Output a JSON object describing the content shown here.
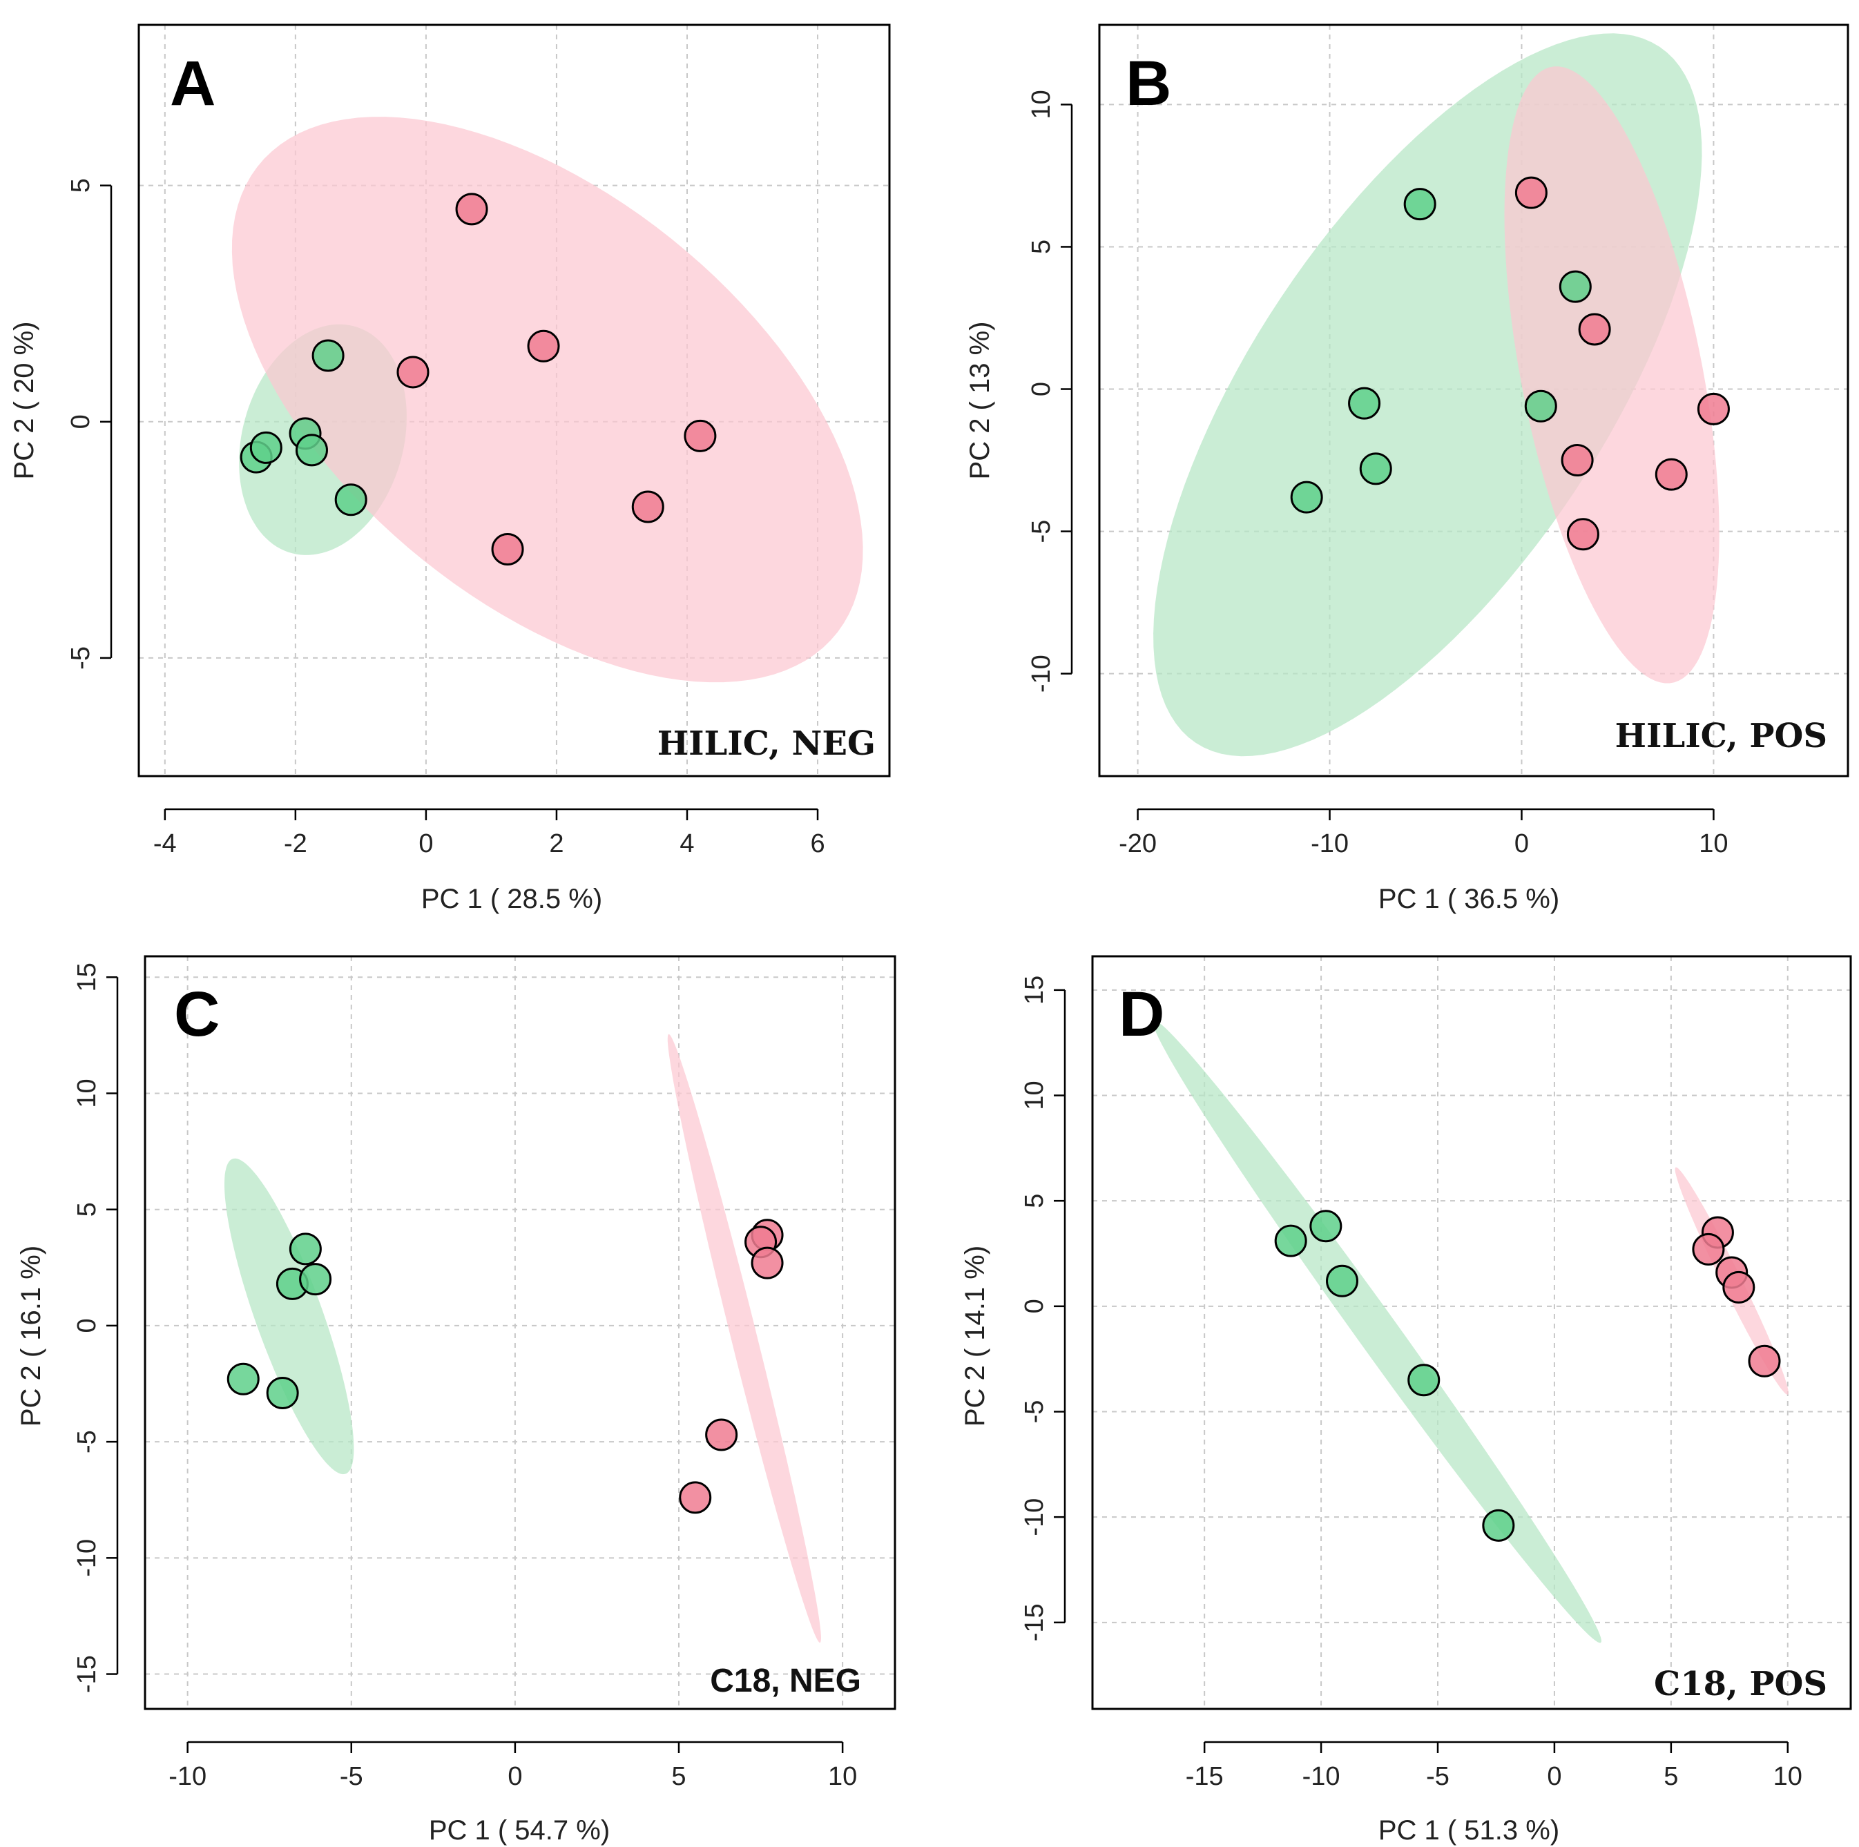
{
  "chart_data": [
    {
      "type": "scatter",
      "panel": "A",
      "label": "HILIC, NEG",
      "xlabel": "PC 1 ( 28.5 %)",
      "ylabel": "PC 2 ( 20 %)",
      "xlim": [
        -4.4,
        7.1
      ],
      "ylim": [
        -7.5,
        8.4
      ],
      "xticks": [
        -4,
        -2,
        0,
        2,
        4,
        6
      ],
      "yticks": [
        -5,
        0,
        5
      ],
      "grid": true,
      "series": [
        {
          "color": "#5fd08b",
          "points": [
            [
              -2.6,
              -0.75
            ],
            [
              -2.45,
              -0.55
            ],
            [
              -1.85,
              -0.25
            ],
            [
              -1.75,
              -0.6
            ],
            [
              -1.5,
              1.4
            ],
            [
              -1.15,
              -1.65
            ]
          ],
          "ellipse": {
            "cx": -1.58,
            "cy": -0.38,
            "rx": 1.25,
            "ry": 2.46,
            "angle_deg": -8,
            "color": "#b6e6c5"
          }
        },
        {
          "color": "#f07c92",
          "points": [
            [
              0.7,
              4.5
            ],
            [
              1.8,
              1.6
            ],
            [
              -0.2,
              1.05
            ],
            [
              4.2,
              -0.3
            ],
            [
              3.4,
              -1.8
            ],
            [
              1.25,
              -2.7
            ]
          ],
          "ellipse": {
            "cx": 1.86,
            "cy": 0.47,
            "rx": 3.6,
            "ry": 6.8,
            "angle_deg": 34,
            "color": "#fcc7d1"
          }
        }
      ]
    },
    {
      "type": "scatter",
      "panel": "B",
      "label": "HILIC, POS",
      "xlabel": "PC 1 ( 36.5 %)",
      "ylabel": "PC 2 ( 13 %)",
      "xlim": [
        -22,
        17
      ],
      "ylim": [
        -13.6,
        12.8
      ],
      "xticks": [
        -20,
        -10,
        0,
        10
      ],
      "yticks": [
        -10,
        -5,
        0,
        5,
        10
      ],
      "grid": true,
      "series": [
        {
          "color": "#5fd08b",
          "points": [
            [
              -5.3,
              6.5
            ],
            [
              -8.2,
              -0.5
            ],
            [
              -7.6,
              -2.8
            ],
            [
              -11.2,
              -3.8
            ],
            [
              2.8,
              3.6
            ],
            [
              1.0,
              -0.6
            ]
          ],
          "ellipse": {
            "cx": -4.9,
            "cy": -0.2,
            "rx": 17.5,
            "ry": 7.7,
            "angle_deg": 40,
            "color": "#b6e6c5"
          }
        },
        {
          "color": "#f07c92",
          "points": [
            [
              0.5,
              6.9
            ],
            [
              3.8,
              2.1
            ],
            [
              10.0,
              -0.7
            ],
            [
              2.9,
              -2.5
            ],
            [
              7.8,
              -3.0
            ],
            [
              3.2,
              -5.1
            ]
          ],
          "ellipse": {
            "cx": 4.7,
            "cy": 0.5,
            "rx": 4.6,
            "ry": 11.3,
            "angle_deg": 18,
            "color": "#fcc7d1"
          }
        }
      ]
    },
    {
      "type": "scatter",
      "panel": "C",
      "label": "C18, NEG",
      "xlabel": "PC 1 ( 54.7 %)",
      "ylabel": "PC 2 ( 16.1 %)",
      "xlim": [
        -11.3,
        11.6
      ],
      "ylim": [
        -16.5,
        15.9
      ],
      "xticks": [
        -10,
        -5,
        0,
        5,
        10
      ],
      "yticks": [
        -15,
        -10,
        -5,
        0,
        5,
        10,
        15
      ],
      "grid": true,
      "series": [
        {
          "color": "#5fd08b",
          "points": [
            [
              -6.4,
              3.3
            ],
            [
              -6.8,
              1.8
            ],
            [
              -6.1,
              2.0
            ],
            [
              -8.3,
              -2.3
            ],
            [
              -7.1,
              -2.9
            ]
          ],
          "ellipse": {
            "cx": -6.9,
            "cy": 0.4,
            "rx": 1.05,
            "ry": 7.0,
            "angle_deg": 14,
            "color": "#b6e6c5"
          }
        },
        {
          "color": "#f07c92",
          "points": [
            [
              7.7,
              3.9
            ],
            [
              7.5,
              3.6
            ],
            [
              7.7,
              2.7
            ],
            [
              6.3,
              -4.7
            ],
            [
              5.5,
              -7.4
            ]
          ],
          "ellipse": {
            "cx": 7.0,
            "cy": -0.55,
            "rx": 0.4,
            "ry": 13.3,
            "angle_deg": 10,
            "color": "#fcc7d1"
          }
        }
      ]
    },
    {
      "type": "scatter",
      "panel": "D",
      "label": "C18, POS",
      "xlabel": "PC 1 ( 51.3 %)",
      "ylabel": "PC 2 ( 14.1 %)",
      "xlim": [
        -19.8,
        12.7
      ],
      "ylim": [
        -19.1,
        16.6
      ],
      "xticks": [
        -15,
        -10,
        -5,
        0,
        5,
        10
      ],
      "yticks": [
        -15,
        -10,
        -5,
        0,
        5,
        10,
        15
      ],
      "grid": true,
      "series": [
        {
          "color": "#5fd08b",
          "points": [
            [
              -11.3,
              3.1
            ],
            [
              -9.8,
              3.8
            ],
            [
              -9.1,
              1.2
            ],
            [
              -5.6,
              -3.5
            ],
            [
              -2.4,
              -10.4
            ]
          ],
          "ellipse": {
            "cx": -7.6,
            "cy": -1.2,
            "rx": 0.9,
            "ry": 17.6,
            "angle_deg": 33,
            "color": "#b6e6c5"
          }
        },
        {
          "color": "#f07c92",
          "points": [
            [
              7.0,
              3.5
            ],
            [
              6.6,
              2.7
            ],
            [
              7.6,
              1.6
            ],
            [
              7.9,
              0.9
            ],
            [
              9.0,
              -2.6
            ]
          ],
          "ellipse": {
            "cx": 7.6,
            "cy": 1.2,
            "rx": 0.42,
            "ry": 5.9,
            "angle_deg": 24,
            "color": "#fcc7d1"
          }
        }
      ]
    }
  ]
}
